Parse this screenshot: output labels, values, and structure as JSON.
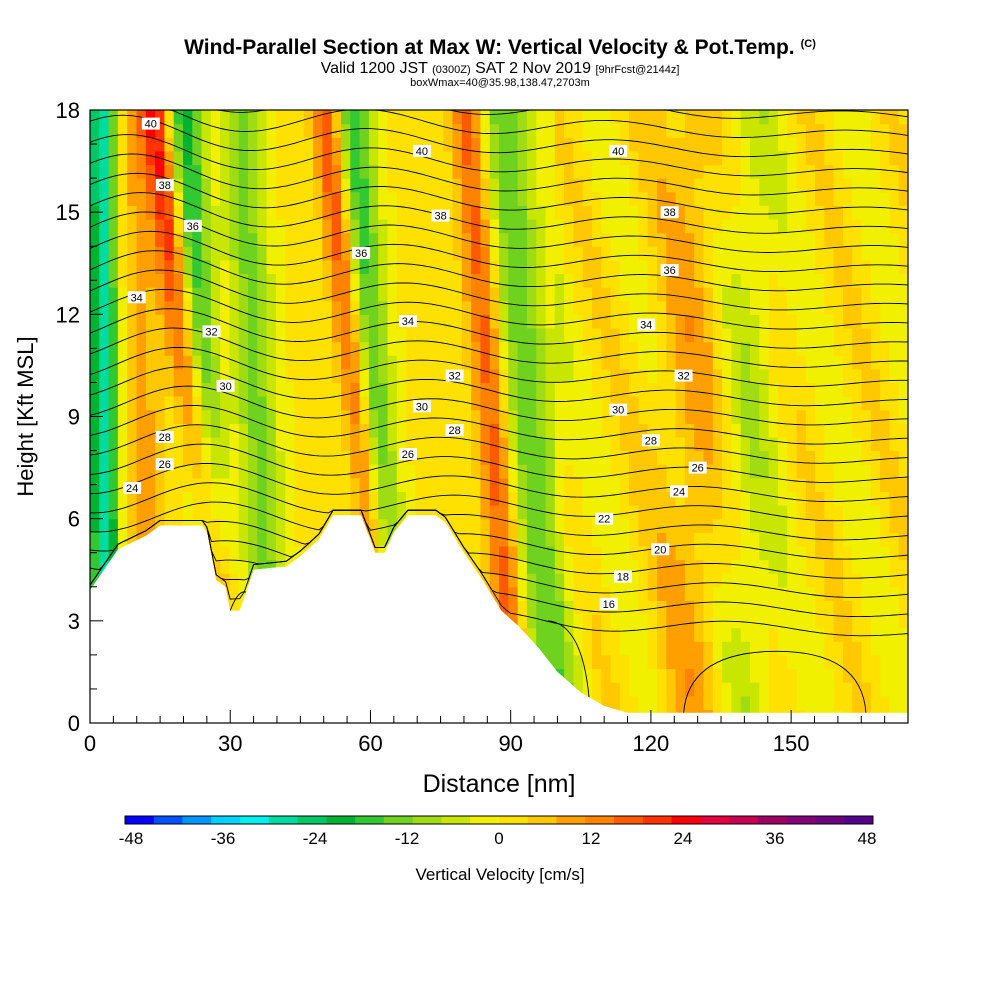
{
  "header": {
    "title": "Wind-Parallel Section at Max W: Vertical Velocity & Pot.Temp.",
    "copyright": "(C)",
    "valid_prefix": "Valid 1200 JST",
    "valid_utc": "(0300Z)",
    "valid_date": "SAT 2 Nov 2019",
    "forecast": "[9hrFcst@2144z]",
    "box_info": "boxWmax=40@35.98,138.47,2703m"
  },
  "chart_data": {
    "type": "heatmap",
    "title": "Wind-Parallel Section at Max W: Vertical Velocity & Pot.Temp.",
    "xlabel": "Distance [nm]",
    "ylabel": "Height [Kft MSL]",
    "xlim": [
      0,
      175
    ],
    "ylim": [
      0,
      18
    ],
    "x_ticks": [
      0,
      30,
      60,
      90,
      120,
      150
    ],
    "y_ticks": [
      0,
      3,
      6,
      9,
      12,
      15,
      18
    ],
    "colorbar": {
      "label": "Vertical Velocity [cm/s]",
      "ticks": [
        -48,
        -36,
        -24,
        -12,
        0,
        12,
        24,
        36,
        48
      ],
      "colors": [
        "#0000ff",
        "#0050ff",
        "#0096ff",
        "#00d2ff",
        "#00f0f0",
        "#00dca0",
        "#00c864",
        "#00b432",
        "#32c832",
        "#6ed21e",
        "#a0dc14",
        "#c8e600",
        "#f0f000",
        "#ffe100",
        "#ffc800",
        "#ffa000",
        "#ff8200",
        "#ff5a00",
        "#ff3200",
        "#ff0000",
        "#e6003c",
        "#c80050",
        "#a00064",
        "#820078",
        "#6e0082",
        "#55008c"
      ]
    },
    "contour_labels": [
      {
        "text": "40",
        "x": 13,
        "y": 17.6
      },
      {
        "text": "40",
        "x": 71,
        "y": 16.8
      },
      {
        "text": "40",
        "x": 113,
        "y": 16.8
      },
      {
        "text": "38",
        "x": 16,
        "y": 15.8
      },
      {
        "text": "38",
        "x": 75,
        "y": 14.9
      },
      {
        "text": "38",
        "x": 124,
        "y": 15.0
      },
      {
        "text": "36",
        "x": 22,
        "y": 14.6
      },
      {
        "text": "36",
        "x": 58,
        "y": 13.8
      },
      {
        "text": "36",
        "x": 124,
        "y": 13.3
      },
      {
        "text": "34",
        "x": 10,
        "y": 12.5
      },
      {
        "text": "34",
        "x": 68,
        "y": 11.8
      },
      {
        "text": "34",
        "x": 119,
        "y": 11.7
      },
      {
        "text": "32",
        "x": 26,
        "y": 11.5
      },
      {
        "text": "32",
        "x": 78,
        "y": 10.2
      },
      {
        "text": "32",
        "x": 127,
        "y": 10.2
      },
      {
        "text": "30",
        "x": 29,
        "y": 9.9
      },
      {
        "text": "30",
        "x": 71,
        "y": 9.3
      },
      {
        "text": "30",
        "x": 113,
        "y": 9.2
      },
      {
        "text": "28",
        "x": 16,
        "y": 8.4
      },
      {
        "text": "28",
        "x": 78,
        "y": 8.6
      },
      {
        "text": "28",
        "x": 120,
        "y": 8.3
      },
      {
        "text": "26",
        "x": 16,
        "y": 7.6
      },
      {
        "text": "26",
        "x": 68,
        "y": 7.9
      },
      {
        "text": "26",
        "x": 130,
        "y": 7.5
      },
      {
        "text": "24",
        "x": 9,
        "y": 6.9
      },
      {
        "text": "24",
        "x": 126,
        "y": 6.8
      },
      {
        "text": "22",
        "x": 110,
        "y": 6.0
      },
      {
        "text": "20",
        "x": 122,
        "y": 5.1
      },
      {
        "text": "18",
        "x": 114,
        "y": 4.3
      },
      {
        "text": "16",
        "x": 111,
        "y": 3.5
      }
    ]
  }
}
